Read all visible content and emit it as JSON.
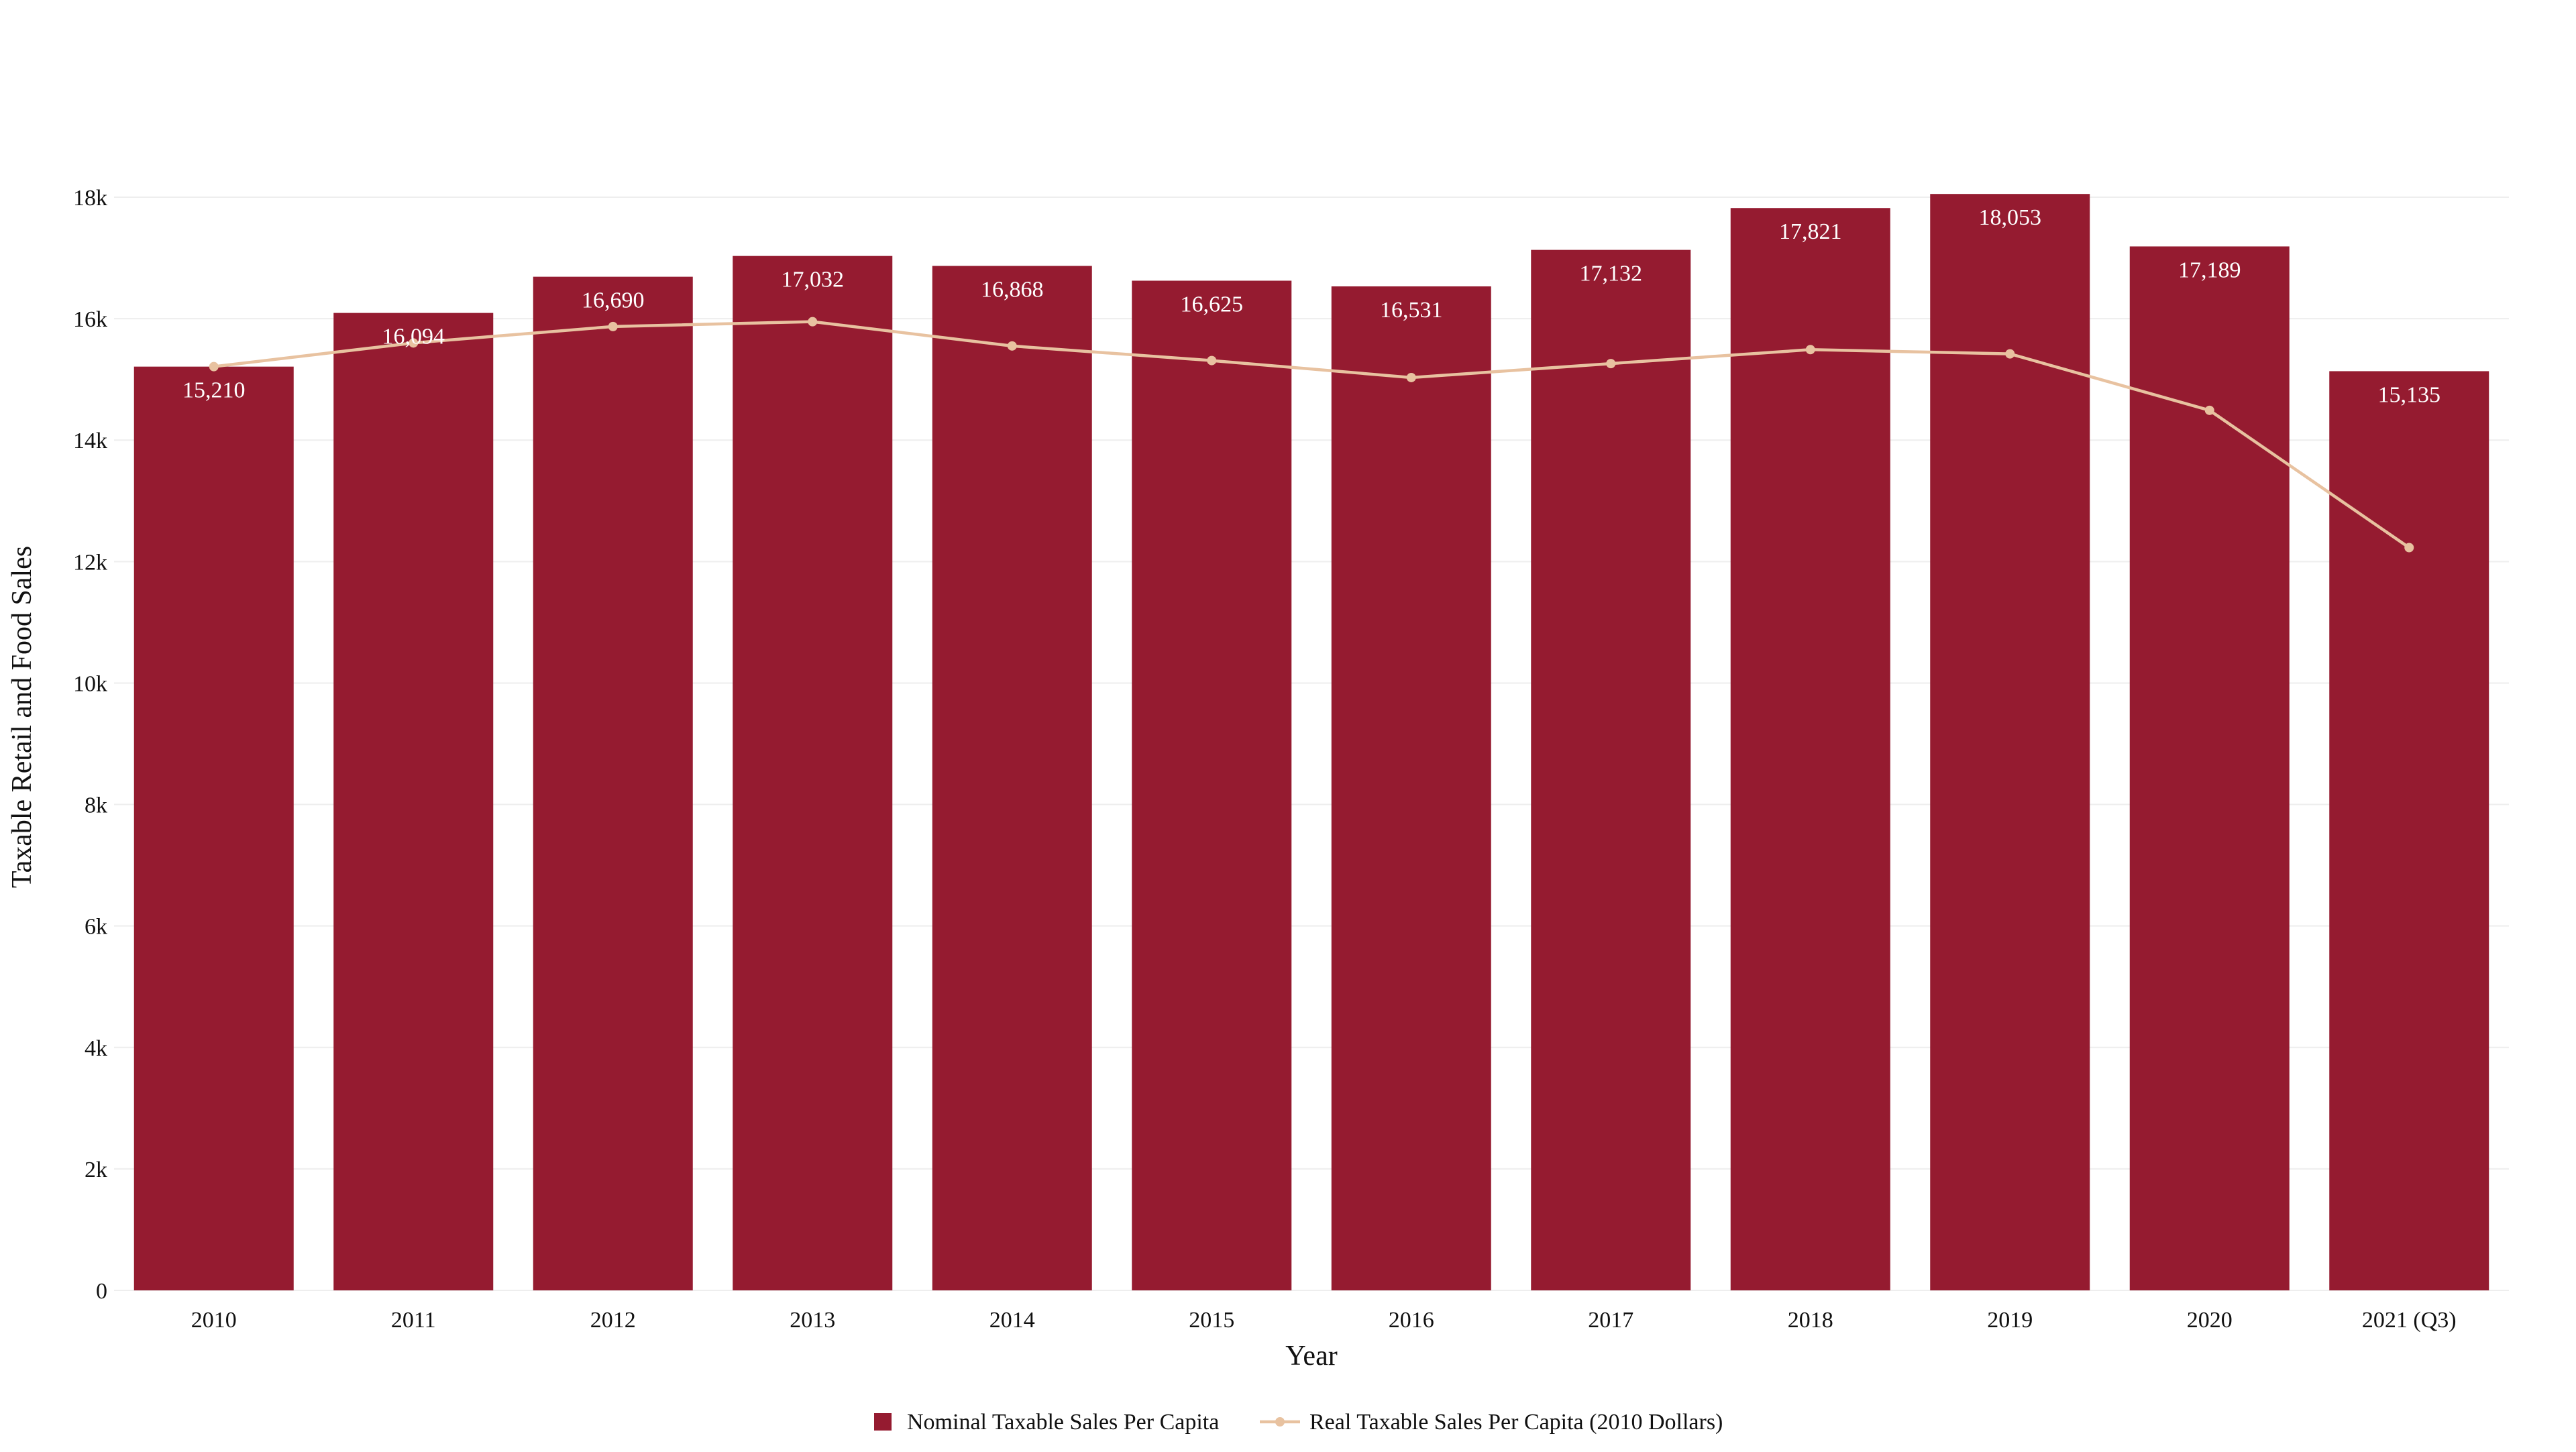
{
  "chart_data": {
    "type": "bar",
    "title": "",
    "xlabel": "Year",
    "ylabel": "Taxable Retail and Food Sales",
    "ylim": [
      0,
      18000
    ],
    "yticks": [
      0,
      2000,
      4000,
      6000,
      8000,
      10000,
      12000,
      14000,
      16000,
      18000
    ],
    "ytick_labels": [
      "0",
      "2k",
      "4k",
      "6k",
      "8k",
      "10k",
      "12k",
      "14k",
      "16k",
      "18k"
    ],
    "categories": [
      "2010",
      "2011",
      "2012",
      "2013",
      "2014",
      "2015",
      "2016",
      "2017",
      "2018",
      "2019",
      "2020",
      "2021 (Q3)"
    ],
    "series": [
      {
        "name": "Nominal Taxable Sales Per Capita",
        "kind": "bar",
        "color": "#951b30",
        "values": [
          15210,
          16094,
          16690,
          17032,
          16868,
          16625,
          16531,
          17132,
          17821,
          18053,
          17189,
          15135
        ],
        "labels": [
          "15,210",
          "16,094",
          "16,690",
          "17,032",
          "16,868",
          "16,625",
          "16,531",
          "17,132",
          "17,821",
          "18,053",
          "17,189",
          "15,135"
        ]
      },
      {
        "name": "Real Taxable Sales Per Capita (2010 Dollars)",
        "kind": "line",
        "color": "#e8c2a0",
        "values": [
          15210,
          15600,
          15870,
          15950,
          15550,
          15310,
          15030,
          15260,
          15490,
          15420,
          14490,
          12230
        ]
      }
    ],
    "legend_position": "bottom-center",
    "grid": true
  }
}
